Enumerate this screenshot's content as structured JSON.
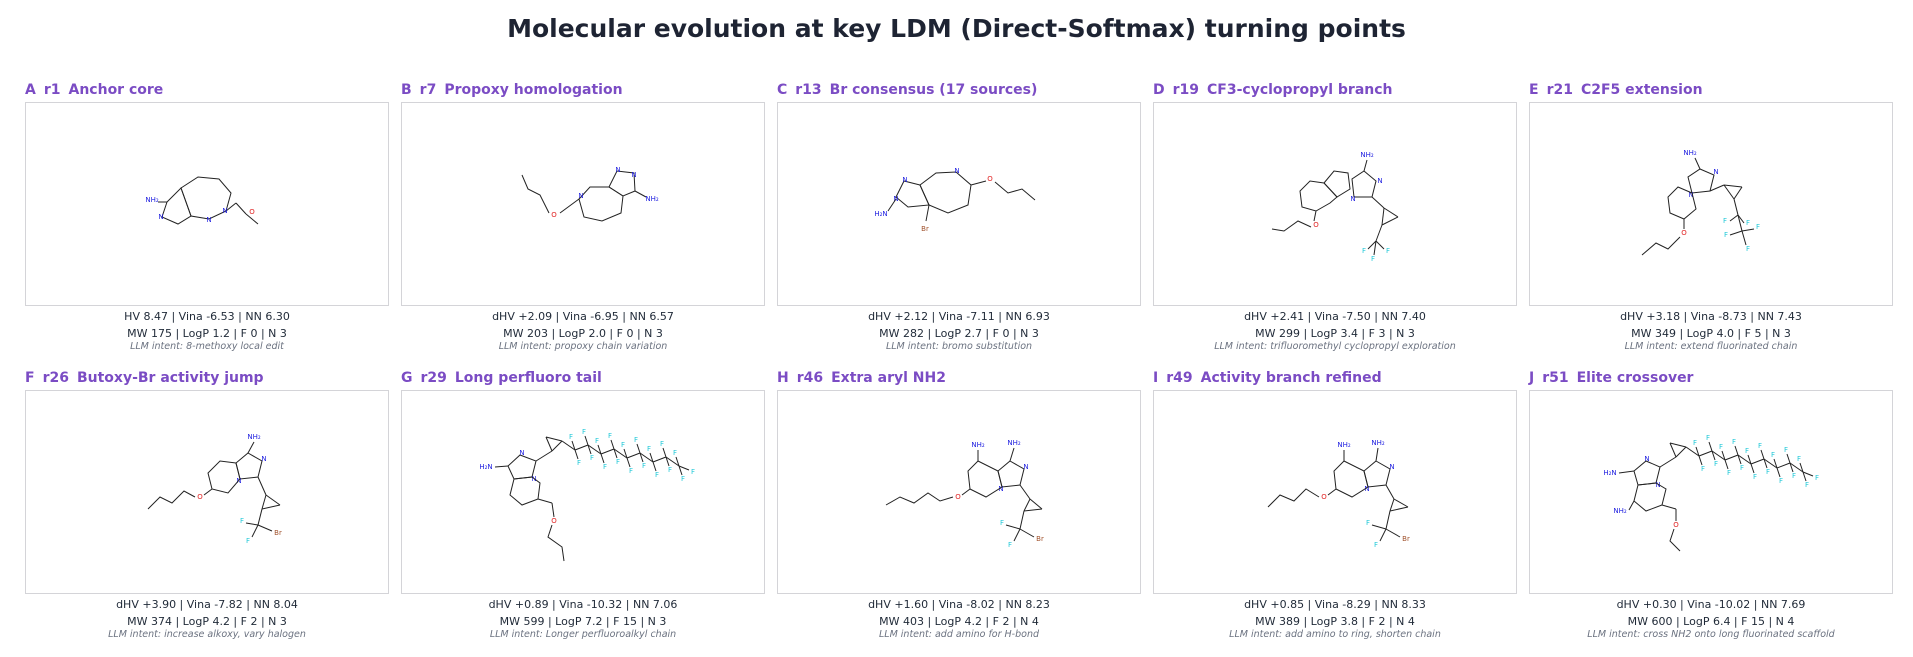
{
  "title": "Molecular evolution at key LDM (Direct-Softmax) turning points",
  "colors": {
    "panel_title": "#7b4cc4",
    "nitrogen": "#2020e0",
    "oxygen": "#e02020",
    "fluorine": "#20c8d8",
    "bromine": "#a0522d",
    "bond": "#222222"
  },
  "panels": [
    {
      "letter": "A",
      "round": "r1",
      "name": "Anchor core",
      "stats1": "HV 8.47  |  Vina -6.53  |  NN 6.30",
      "stats2": "MW 175  |  LogP 1.2  |  F 0  |  N 3",
      "intent": "LLM intent: 8-methoxy local edit"
    },
    {
      "letter": "B",
      "round": "r7",
      "name": "Propoxy homologation",
      "stats1": "dHV +2.09  |  Vina -6.95  |  NN 6.57",
      "stats2": "MW 203  |  LogP 2.0  |  F 0  |  N 3",
      "intent": "LLM intent: propoxy chain variation"
    },
    {
      "letter": "C",
      "round": "r13",
      "name": "Br consensus (17 sources)",
      "stats1": "dHV +2.12  |  Vina -7.11  |  NN 6.93",
      "stats2": "MW 282  |  LogP 2.7  |  F 0  |  N 3",
      "intent": "LLM intent: bromo substitution"
    },
    {
      "letter": "D",
      "round": "r19",
      "name": "CF3-cyclopropyl branch",
      "stats1": "dHV +2.41  |  Vina -7.50  |  NN 7.40",
      "stats2": "MW 299  |  LogP 3.4  |  F 3  |  N 3",
      "intent": "LLM intent: trifluoromethyl cyclopropyl exploration"
    },
    {
      "letter": "E",
      "round": "r21",
      "name": "C2F5 extension",
      "stats1": "dHV +3.18  |  Vina -8.73  |  NN 7.43",
      "stats2": "MW 349  |  LogP 4.0  |  F 5  |  N 3",
      "intent": "LLM intent: extend fluorinated chain"
    },
    {
      "letter": "F",
      "round": "r26",
      "name": "Butoxy-Br activity jump",
      "stats1": "dHV +3.90  |  Vina -7.82  |  NN 8.04",
      "stats2": "MW 374  |  LogP 4.2  |  F 2  |  N 3",
      "intent": "LLM intent: increase alkoxy, vary halogen"
    },
    {
      "letter": "G",
      "round": "r29",
      "name": "Long perfluoro tail",
      "stats1": "dHV +0.89  |  Vina -10.32  |  NN 7.06",
      "stats2": "MW 599  |  LogP 7.2  |  F 15  |  N 3",
      "intent": "LLM intent: Longer perfluoroalkyl chain"
    },
    {
      "letter": "H",
      "round": "r46",
      "name": "Extra aryl NH2",
      "stats1": "dHV +1.60  |  Vina -8.02  |  NN 8.23",
      "stats2": "MW 403  |  LogP 4.2  |  F 2  |  N 4",
      "intent": "LLM intent: add amino for H-bond"
    },
    {
      "letter": "I",
      "round": "r49",
      "name": "Activity branch refined",
      "stats1": "dHV +0.85  |  Vina -8.29  |  NN 8.33",
      "stats2": "MW 389  |  LogP 3.8  |  F 2  |  N 4",
      "intent": "LLM intent: add amino to ring, shorten chain"
    },
    {
      "letter": "J",
      "round": "r51",
      "name": "Elite crossover",
      "stats1": "dHV +0.30  |  Vina -10.02  |  NN 7.69",
      "stats2": "MW 600  |  LogP 6.4  |  F 15  |  N 4",
      "intent": "LLM intent: cross NH2 onto long fluorinated scaffold"
    }
  ],
  "atom_labels": {
    "nh2": "NH₂",
    "h2n": "H₂N",
    "n": "N",
    "o": "O",
    "f": "F",
    "br": "Br"
  }
}
